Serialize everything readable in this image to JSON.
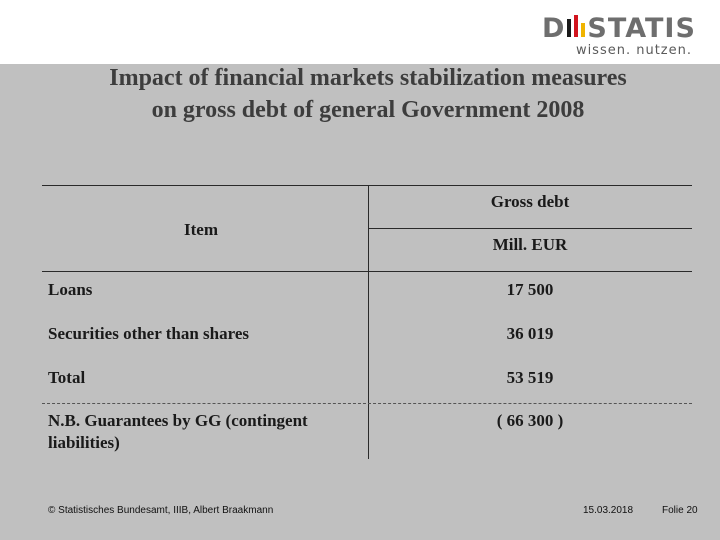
{
  "header": {
    "logo_text_left": "D",
    "logo_text_right": "STATIS",
    "logo_tagline": "wissen. nutzen."
  },
  "slide": {
    "title_line1": "Impact of financial markets stabilization measures",
    "title_line2": "on gross debt of general Government 2008"
  },
  "table": {
    "col_item_header": "Item",
    "col_value_header": "Gross debt",
    "col_value_unit": "Mill. EUR",
    "rows": [
      {
        "label": "Loans",
        "value": "17 500"
      },
      {
        "label": "Securities other than shares",
        "value": "36 019"
      },
      {
        "label": "Total",
        "value": "53 519"
      }
    ],
    "note_label_line1": "N.B. Guarantees by GG (contingent",
    "note_label_line2": "liabilities)",
    "note_value": "( 66 300 )"
  },
  "footer": {
    "copyright": "© Statistisches Bundesamt, IIIB, Albert Braakmann",
    "date": "15.03.2018",
    "slide_number": "Folie 20"
  },
  "colors": {
    "background": "#c0c0c0",
    "logo_black": "#1a1a1a",
    "logo_red": "#d2141e",
    "logo_gold": "#f0b400"
  }
}
